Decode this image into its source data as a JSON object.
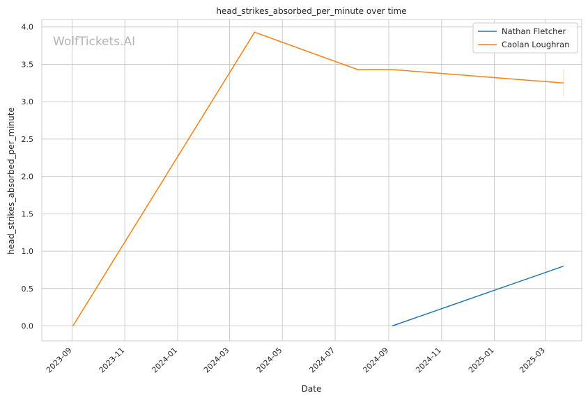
{
  "chart_data": {
    "type": "line",
    "title": "head_strikes_absorbed_per_minute over time",
    "xlabel": "Date",
    "ylabel": "head_strikes_absorbed_per_minute",
    "watermark": "WolfTickets.AI",
    "grid": true,
    "legend_position": "top-right",
    "xlim": [
      "2023-07-28",
      "2025-04-12"
    ],
    "ylim": [
      -0.2,
      4.1
    ],
    "x_ticks": [
      "2023-09",
      "2023-11",
      "2024-01",
      "2024-03",
      "2024-05",
      "2024-07",
      "2024-09",
      "2024-11",
      "2025-01",
      "2025-03"
    ],
    "y_ticks": [
      "0.0",
      "0.5",
      "1.0",
      "1.5",
      "2.0",
      "2.5",
      "3.0",
      "3.5",
      "4.0"
    ],
    "series": [
      {
        "name": "Nathan Fletcher",
        "color": "#1f77b4",
        "x": [
          "2024-09-05",
          "2025-03-22"
        ],
        "y": [
          0.0,
          0.8
        ]
      },
      {
        "name": "Caolan Loughran",
        "color": "#ff7f0e",
        "x": [
          "2023-09-02",
          "2024-03-30",
          "2024-07-27",
          "2024-09-05",
          "2025-03-22"
        ],
        "y": [
          0.0,
          3.93,
          3.43,
          3.43,
          3.25
        ]
      }
    ]
  }
}
